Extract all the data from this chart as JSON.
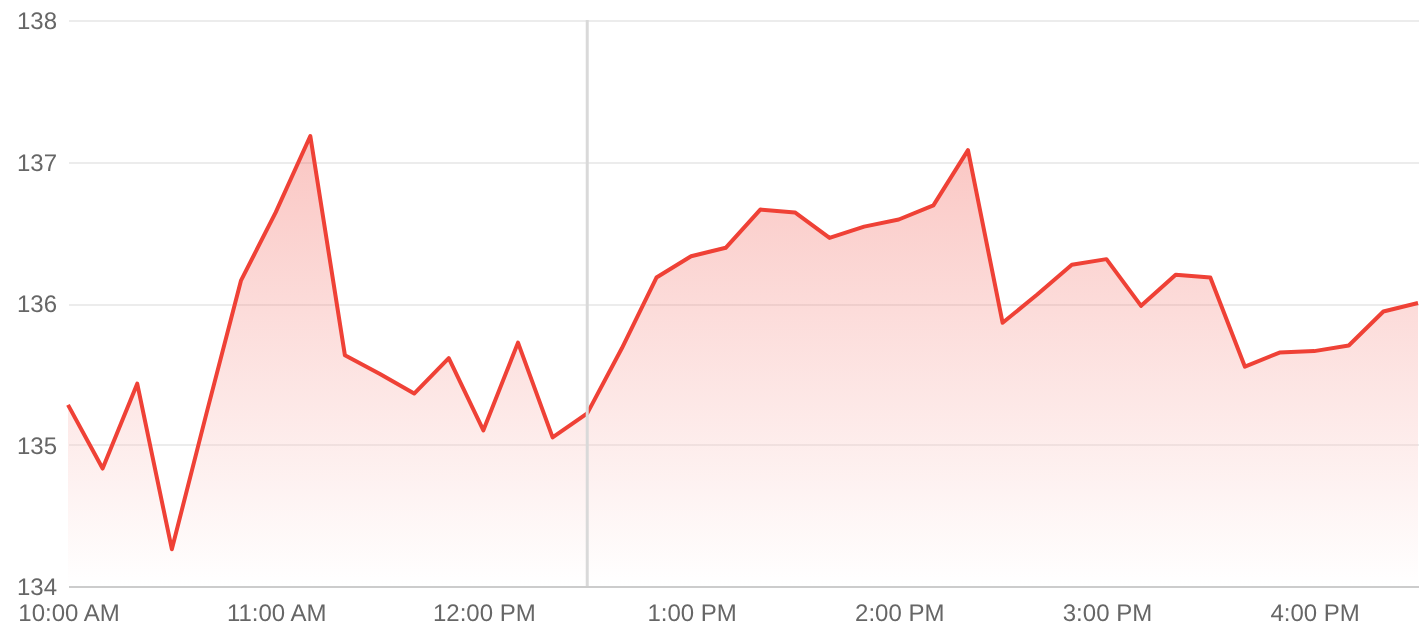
{
  "chart_data": {
    "type": "area",
    "x": [
      10,
      10.1667,
      10.3333,
      10.5,
      10.6667,
      10.8333,
      11,
      11.1667,
      11.3333,
      11.5,
      11.6667,
      11.8333,
      12,
      12.1667,
      12.3333,
      12.5,
      12.6667,
      12.8333,
      13,
      13.1667,
      13.3333,
      13.5,
      13.6667,
      13.8333,
      14,
      14.1667,
      14.3333,
      14.5,
      14.6667,
      14.8333,
      15,
      15.1667,
      15.3333,
      15.5,
      15.6667,
      15.8333,
      16,
      16.1667,
      16.3333,
      16.5
    ],
    "values": [
      135.28,
      134.83,
      135.43,
      134.26,
      135.22,
      136.16,
      136.64,
      137.18,
      135.63,
      135.5,
      135.36,
      135.61,
      135.1,
      135.72,
      135.05,
      135.22,
      135.68,
      136.18,
      136.33,
      136.39,
      136.66,
      136.64,
      136.46,
      136.54,
      136.59,
      136.69,
      137.08,
      135.86,
      136.06,
      136.27,
      136.31,
      135.98,
      136.2,
      136.18,
      135.55,
      135.65,
      135.66,
      135.7,
      135.94,
      136.0
    ],
    "color": "#ef4136",
    "xlim": [
      10,
      16.5
    ],
    "xticks": [
      {
        "value": 10,
        "label": "10:00 AM"
      },
      {
        "value": 11,
        "label": "11:00 AM"
      },
      {
        "value": 12,
        "label": "12:00 PM"
      },
      {
        "value": 13,
        "label": "1:00 PM"
      },
      {
        "value": 14,
        "label": "2:00 PM"
      },
      {
        "value": 15,
        "label": "3:00 PM"
      },
      {
        "value": 16,
        "label": "4:00 PM"
      }
    ],
    "ylim": [
      134,
      138
    ],
    "yticks": [
      134,
      135,
      136,
      137,
      138
    ],
    "grid": "y",
    "ref_lines": [
      {
        "axis": "x",
        "value": 12.5,
        "color": "#d9d9d9"
      }
    ]
  }
}
